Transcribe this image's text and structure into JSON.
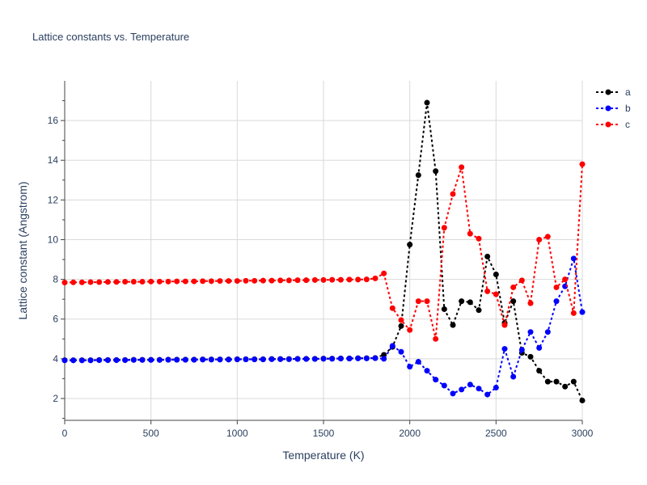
{
  "chart_data": {
    "type": "line",
    "title": "Lattice constants vs. Temperature",
    "xlabel": "Temperature (K)",
    "ylabel": "Lattice constant (Angstrom)",
    "xlim": [
      0,
      3000
    ],
    "ylim": [
      0.9,
      18.0
    ],
    "xticks": [
      0,
      500,
      1000,
      1500,
      2000,
      2500,
      3000
    ],
    "yticks": [
      2,
      4,
      6,
      8,
      10,
      12,
      14,
      16
    ],
    "grid": true,
    "legend_position": "top-right",
    "x": [
      0,
      50,
      100,
      150,
      200,
      250,
      300,
      350,
      400,
      450,
      500,
      550,
      600,
      650,
      700,
      750,
      800,
      850,
      900,
      950,
      1000,
      1050,
      1100,
      1150,
      1200,
      1250,
      1300,
      1350,
      1400,
      1450,
      1500,
      1550,
      1600,
      1650,
      1700,
      1750,
      1800,
      1850,
      1900,
      1950,
      2000,
      2050,
      2100,
      2150,
      2200,
      2250,
      2300,
      2350,
      2400,
      2450,
      2500,
      2550,
      2600,
      2650,
      2700,
      2750,
      2800,
      2850,
      2900,
      2950,
      3000
    ],
    "series": [
      {
        "name": "a",
        "color": "#000000",
        "values": [
          3.93,
          3.93,
          3.93,
          3.93,
          3.94,
          3.94,
          3.94,
          3.94,
          3.95,
          3.95,
          3.95,
          3.95,
          3.96,
          3.96,
          3.96,
          3.96,
          3.97,
          3.97,
          3.97,
          3.97,
          3.98,
          3.98,
          3.98,
          3.98,
          3.99,
          3.99,
          3.99,
          4.0,
          4.0,
          4.0,
          4.01,
          4.01,
          4.02,
          4.02,
          4.03,
          4.03,
          4.04,
          4.2,
          4.6,
          5.65,
          9.75,
          13.25,
          16.9,
          13.45,
          6.5,
          5.7,
          6.9,
          6.85,
          6.45,
          9.15,
          8.25,
          5.8,
          6.9,
          4.3,
          4.1,
          3.4,
          2.85,
          2.85,
          2.6,
          2.85,
          1.9
        ]
      },
      {
        "name": "b",
        "color": "#0000ff",
        "values": [
          3.92,
          3.92,
          3.92,
          3.92,
          3.93,
          3.93,
          3.93,
          3.93,
          3.94,
          3.94,
          3.94,
          3.94,
          3.95,
          3.95,
          3.95,
          3.95,
          3.96,
          3.96,
          3.96,
          3.96,
          3.97,
          3.97,
          3.97,
          3.97,
          3.98,
          3.98,
          3.98,
          3.99,
          3.99,
          3.99,
          4.0,
          4.0,
          4.01,
          4.01,
          4.02,
          4.02,
          4.03,
          4.0,
          4.65,
          4.35,
          3.6,
          3.85,
          3.4,
          2.95,
          2.65,
          2.25,
          2.45,
          2.7,
          2.5,
          2.2,
          2.55,
          4.5,
          3.1,
          4.45,
          5.35,
          4.55,
          5.35,
          6.9,
          7.65,
          9.05,
          6.35
        ]
      },
      {
        "name": "c",
        "color": "#ff0000",
        "values": [
          7.84,
          7.85,
          7.85,
          7.86,
          7.86,
          7.87,
          7.87,
          7.88,
          7.88,
          7.88,
          7.89,
          7.89,
          7.89,
          7.9,
          7.9,
          7.9,
          7.91,
          7.91,
          7.92,
          7.92,
          7.92,
          7.93,
          7.93,
          7.94,
          7.94,
          7.95,
          7.95,
          7.96,
          7.96,
          7.97,
          7.97,
          7.98,
          7.98,
          7.99,
          7.99,
          8.0,
          8.05,
          8.3,
          6.55,
          5.95,
          5.45,
          6.9,
          6.9,
          5.0,
          10.6,
          12.3,
          13.65,
          10.3,
          10.05,
          7.4,
          7.25,
          5.7,
          7.6,
          7.95,
          6.8,
          10.0,
          10.15,
          7.6,
          8.0,
          6.3,
          13.8
        ]
      }
    ]
  }
}
